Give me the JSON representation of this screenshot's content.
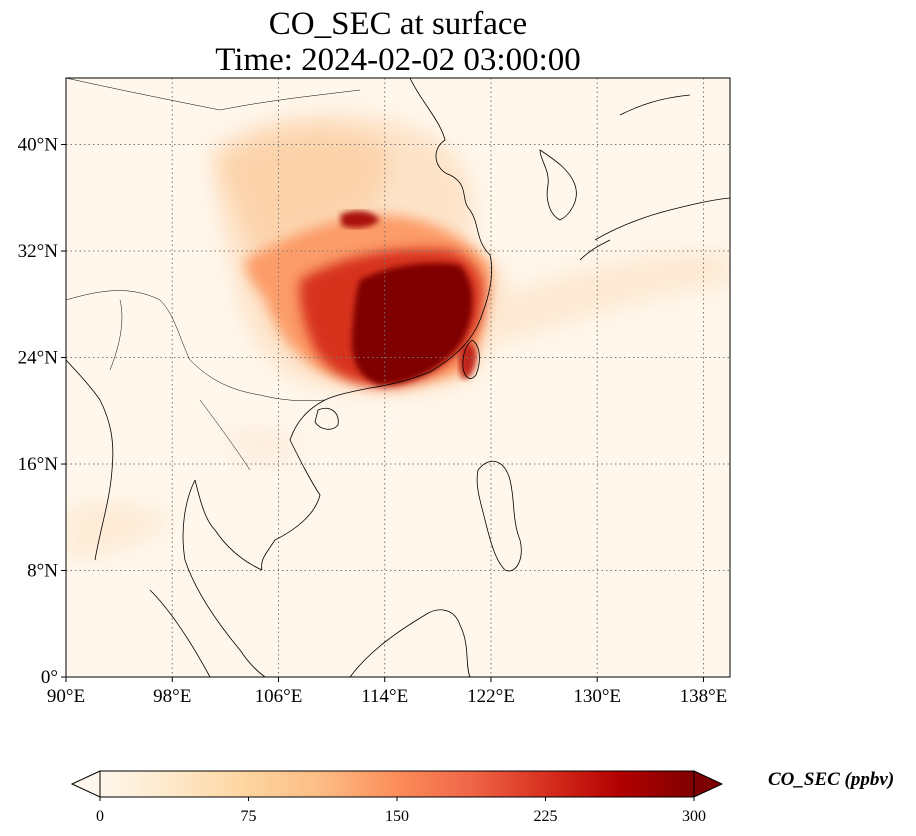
{
  "title": {
    "line1": "CO_SEC at surface",
    "line2": "Time: 2024-02-02 03:00:00"
  },
  "map": {
    "lon_range": [
      90,
      140
    ],
    "lat_range": [
      0,
      45
    ],
    "lon_ticks": [
      90,
      98,
      106,
      114,
      122,
      130,
      138
    ],
    "lon_tick_labels": [
      "90°E",
      "98°E",
      "106°E",
      "114°E",
      "122°E",
      "130°E",
      "138°E"
    ],
    "lat_ticks": [
      0,
      8,
      16,
      24,
      32,
      40
    ],
    "lat_tick_labels": [
      "0°",
      "8°N",
      "16°N",
      "24°N",
      "32°N",
      "40°N"
    ],
    "gridlines": true,
    "gridline_style": "dotted"
  },
  "colorbar": {
    "label": "CO_SEC (ppbv)",
    "min": 0,
    "max": 300,
    "ticks": [
      0,
      75,
      150,
      225,
      300
    ],
    "tick_labels": [
      "0",
      "75",
      "150",
      "225",
      "300"
    ],
    "extend": "both",
    "colormap": "OrRd",
    "stops": [
      "#fff7ec",
      "#fee8c8",
      "#fdd49e",
      "#fdbb84",
      "#fc8d59",
      "#ef6548",
      "#d7301f",
      "#b30000",
      "#7f0000"
    ]
  },
  "colors": {
    "background_field": "#fff7ec",
    "coastline": "#000000",
    "gridline": "#777777"
  }
}
